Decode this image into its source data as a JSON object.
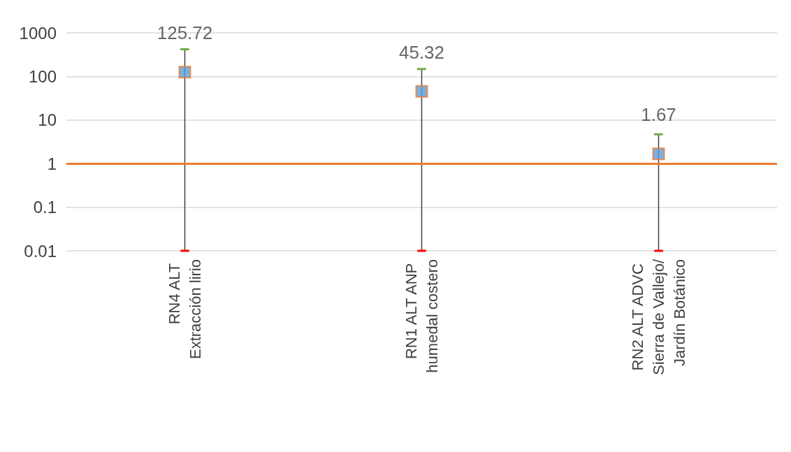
{
  "chart_data": {
    "type": "scatter",
    "categories": [
      "RN4 ALT Extracción lirio",
      "RN1 ALT ANP humedal costero",
      "RN2 ALT ADVC Sierra de Vallejo/Jardín Botánico"
    ],
    "values": [
      125.72,
      45.32,
      1.67
    ],
    "errors": [
      [
        0.01,
        420
      ],
      [
        0.01,
        148
      ],
      [
        0.01,
        4.7
      ]
    ],
    "color": "#5b9bd5",
    "marker": "square",
    "data_labels": true,
    "log": "y",
    "ylim": [
      0.01,
      1000
    ],
    "yticks": [
      0.01,
      0.1,
      1,
      10,
      100,
      1000
    ],
    "grid": "y",
    "ref_lines": [
      {
        "axis": "y",
        "value": 1,
        "color": "#ed7d31"
      }
    ]
  }
}
